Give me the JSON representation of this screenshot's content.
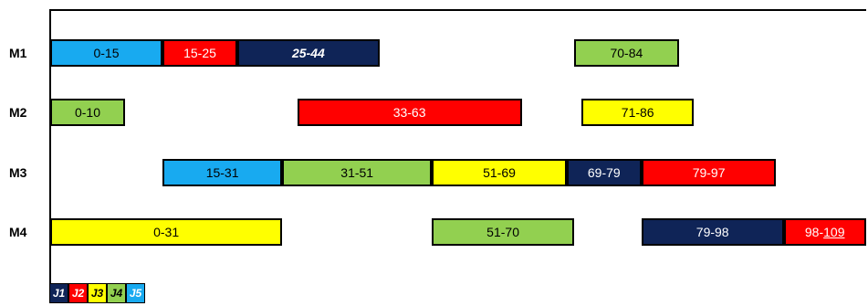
{
  "colors": {
    "J1": "#0f2457",
    "J2": "#ff0000",
    "J3": "#ffff00",
    "J4": "#92d050",
    "J5": "#18aaf0"
  },
  "chart_data": {
    "type": "gantt",
    "machines": [
      "M1",
      "M2",
      "M3",
      "M4"
    ],
    "tasks": [
      {
        "machine": "M1",
        "job": "J5",
        "start": 0,
        "end": 15,
        "label": "0-15"
      },
      {
        "machine": "M1",
        "job": "J2",
        "start": 15,
        "end": 25,
        "label": "15-25"
      },
      {
        "machine": "M1",
        "job": "J1",
        "start": 25,
        "end": 44,
        "label": "25-44",
        "italic": true
      },
      {
        "machine": "M1",
        "job": "J4",
        "start": 70,
        "end": 84,
        "label": "70-84"
      },
      {
        "machine": "M2",
        "job": "J4",
        "start": 0,
        "end": 10,
        "label": "0-10"
      },
      {
        "machine": "M2",
        "job": "J2",
        "start": 33,
        "end": 63,
        "label": "33-63"
      },
      {
        "machine": "M2",
        "job": "J3",
        "start": 71,
        "end": 86,
        "label": "71-86"
      },
      {
        "machine": "M3",
        "job": "J5",
        "start": 15,
        "end": 31,
        "label": "15-31"
      },
      {
        "machine": "M3",
        "job": "J4",
        "start": 31,
        "end": 51,
        "label": "31-51"
      },
      {
        "machine": "M3",
        "job": "J3",
        "start": 51,
        "end": 69,
        "label": "51-69"
      },
      {
        "machine": "M3",
        "job": "J1",
        "start": 69,
        "end": 79,
        "label": "69-79"
      },
      {
        "machine": "M3",
        "job": "J2",
        "start": 79,
        "end": 97,
        "label": "79-97"
      },
      {
        "machine": "M4",
        "job": "J3",
        "start": 0,
        "end": 31,
        "label": "0-31"
      },
      {
        "machine": "M4",
        "job": "J4",
        "start": 51,
        "end": 70,
        "label": "51-70"
      },
      {
        "machine": "M4",
        "job": "J1",
        "start": 79,
        "end": 98,
        "label": "79-98"
      },
      {
        "machine": "M4",
        "job": "J2",
        "start": 98,
        "end": 109,
        "label": "98-109"
      }
    ],
    "legend": [
      "J1",
      "J2",
      "J3",
      "J4",
      "J5"
    ],
    "legend_position": "bottom-left",
    "xlim": [
      0,
      109
    ]
  }
}
